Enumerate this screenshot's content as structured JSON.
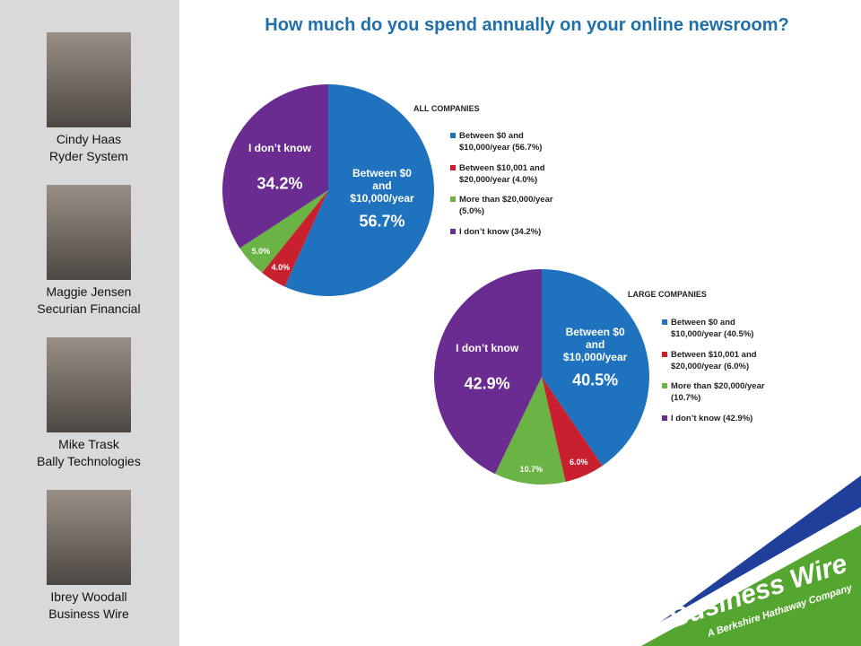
{
  "title": "How much do you spend annually on your online newsroom?",
  "speakers": [
    {
      "name": "Cindy Haas",
      "company": "Ryder System"
    },
    {
      "name": "Maggie Jensen",
      "company": "Securian Financial"
    },
    {
      "name": "Mike Trask",
      "company": "Bally Technologies"
    },
    {
      "name": "Ibrey Woodall",
      "company": "Business Wire"
    }
  ],
  "logo": {
    "name": "Business Wire",
    "tagline": "A Berkshire Hathaway Company"
  },
  "chart_data": [
    {
      "type": "pie",
      "title": "ALL COMPANIES",
      "categories": [
        "Between $0 and $10,000/year",
        "Between $10,001 and $20,000/year",
        "More than $20,000/year",
        "I don't know"
      ],
      "slice_names": [
        "Between $0 and $10,000/year",
        null,
        null,
        "I don’t know"
      ],
      "values": [
        56.7,
        4.0,
        5.0,
        34.2
      ],
      "value_labels": [
        "56.7%",
        "4.0%",
        "5.0%",
        "34.2%"
      ],
      "legend_labels": [
        "Between $0 and $10,000/year (56.7%)",
        "Between $10,001 and $20,000/year (4.0%)",
        "More than $20,000/year (5.0%)",
        "I don’t know (34.2%)"
      ],
      "colors": [
        "#1f73be",
        "#c8202f",
        "#6ab445",
        "#6a2c91"
      ]
    },
    {
      "type": "pie",
      "title": "LARGE COMPANIES",
      "categories": [
        "Between $0 and $10,000/year",
        "Between $10,001 and $20,000/year",
        "More than $20,000/year",
        "I don't know"
      ],
      "slice_names": [
        "Between $0 and $10,000/year",
        null,
        null,
        "I don’t know"
      ],
      "values": [
        40.5,
        6.0,
        10.7,
        42.9
      ],
      "value_labels": [
        "40.5%",
        "6.0%",
        "10.7%",
        "42.9%"
      ],
      "legend_labels": [
        "Between $0 and $10,000/year (40.5%)",
        "Between $10,001 and $20,000/year (6.0%)",
        "More than $20,000/year (10.7%)",
        "I don’t know (42.9%)"
      ],
      "colors": [
        "#1f73be",
        "#c8202f",
        "#6ab445",
        "#6a2c91"
      ]
    }
  ]
}
